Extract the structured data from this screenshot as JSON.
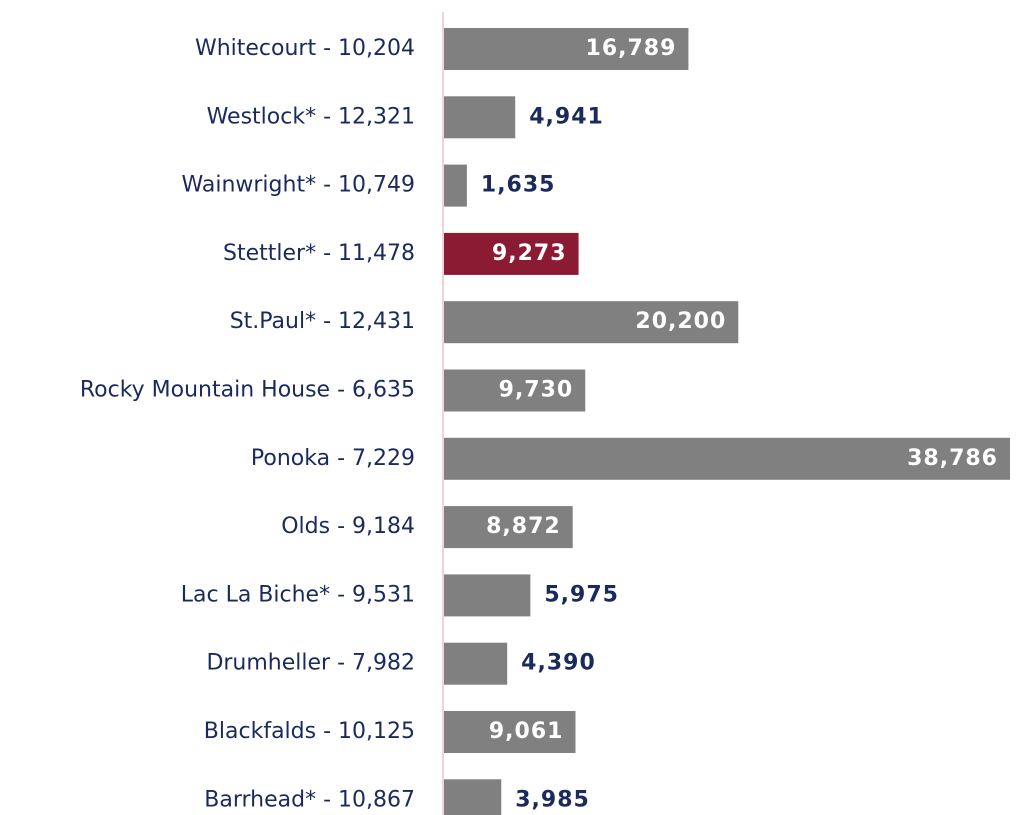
{
  "chart_data": {
    "type": "bar",
    "orientation": "horizontal",
    "categories": [
      "Whitecourt - 10,204",
      "Westlock* - 12,321",
      "Wainwright* - 10,749",
      "Stettler* - 11,478",
      "St.Paul* - 12,431",
      "Rocky Mountain House - 6,635",
      "Ponoka - 7,229",
      "Olds - 9,184",
      "Lac La Biche* - 9,531",
      "Drumheller - 7,982",
      "Blackfalds - 10,125",
      "Barrhead* - 10,867"
    ],
    "values": [
      16789,
      4941,
      1635,
      9273,
      20200,
      9730,
      38786,
      8872,
      5975,
      4390,
      9061,
      3985
    ],
    "value_labels": [
      "16,789",
      "4,941",
      "1,635",
      "9,273",
      "20,200",
      "9,730",
      "38,786",
      "8,872",
      "5,975",
      "4,390",
      "9,061",
      "3,985"
    ],
    "colors": [
      "#808080",
      "#808080",
      "#808080",
      "#8b1a33",
      "#808080",
      "#808080",
      "#808080",
      "#808080",
      "#808080",
      "#808080",
      "#808080",
      "#808080"
    ]
  }
}
